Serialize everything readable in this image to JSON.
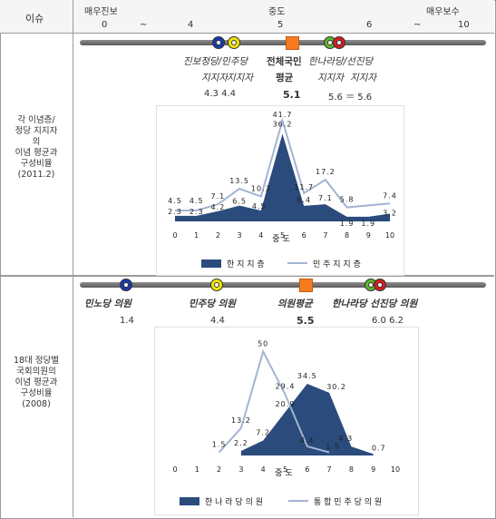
{
  "header": {
    "issue": "이슈",
    "extreme_progressive": "매우진보",
    "middle": "중도",
    "extreme_conservative": "매우보수",
    "ticks": [
      "0",
      "~",
      "4",
      "5",
      "6",
      "~",
      "10"
    ]
  },
  "section1": {
    "side_label": [
      "각 이념층/",
      "정당 지지자",
      "의",
      "이념 평균과",
      "구성비율",
      "(2011.2)"
    ],
    "groups": [
      {
        "line1": "진보정당/민주당",
        "line2a": "지지자",
        "line2b": "지지자",
        "value": "4.3  4.4"
      },
      {
        "line1": "전체국민",
        "line2": "평균",
        "value": "5.1"
      },
      {
        "line1": "한나라당/선진당",
        "line2a": "지지자",
        "line2b": "지지자",
        "value": "5.6 ＝ 5.6"
      }
    ]
  },
  "section2": {
    "side_label": [
      "18대 정당별",
      "국회의원의",
      "이념 평균과",
      "구성비율",
      "(2008)"
    ],
    "groups": [
      {
        "name": "민노당 의원",
        "value": "1.4"
      },
      {
        "name": "민주당 의원",
        "value": "4.4"
      },
      {
        "name": "의원평균",
        "value": "5.5"
      },
      {
        "name": "한나라당 선진당 의원",
        "value": "6.0   6.2"
      }
    ]
  },
  "colors": {
    "orange": "#f47b20",
    "navy": "#2a4b7c",
    "light_series": "#a3b4d4",
    "yellow_icon": "#f2e400",
    "blue_icon": "#1a3aa8",
    "green_icon": "#5fb52e",
    "red_icon": "#d02020"
  },
  "chart_data": [
    {
      "type": "area",
      "xlabel": "중도",
      "categories": [
        "0",
        "1",
        "2",
        "3",
        "4",
        "5",
        "6",
        "7",
        "8",
        "9",
        "10"
      ],
      "series": [
        {
          "name": "한 지 지 층",
          "values": [
            2.3,
            2.3,
            4.2,
            6.5,
            4.5,
            36.2,
            6.4,
            7.1,
            1.9,
            1.9,
            3.2
          ]
        },
        {
          "name": "민 주 지 지 층",
          "values": [
            4.5,
            4.5,
            7.1,
            13.5,
            10.3,
            41.7,
            11.7,
            17.2,
            5.8,
            null,
            7.4
          ]
        }
      ],
      "ylim": [
        0,
        45
      ]
    },
    {
      "type": "area",
      "xlabel": "중도",
      "categories": [
        "0",
        "1",
        "2",
        "3",
        "4",
        "5",
        "6",
        "7",
        "8",
        "9",
        "10"
      ],
      "series": [
        {
          "name": "한 나 라 당 의 원",
          "values": [
            null,
            null,
            null,
            2.2,
            7.2,
            20.9,
            34.5,
            30.2,
            4.3,
            0.7,
            null
          ]
        },
        {
          "name": "통 합 민 주 당 의 원",
          "values": [
            null,
            null,
            1.5,
            13.2,
            50.0,
            29.4,
            4.4,
            1.5,
            null,
            null,
            null
          ]
        }
      ],
      "ylim": [
        0,
        55
      ]
    }
  ]
}
